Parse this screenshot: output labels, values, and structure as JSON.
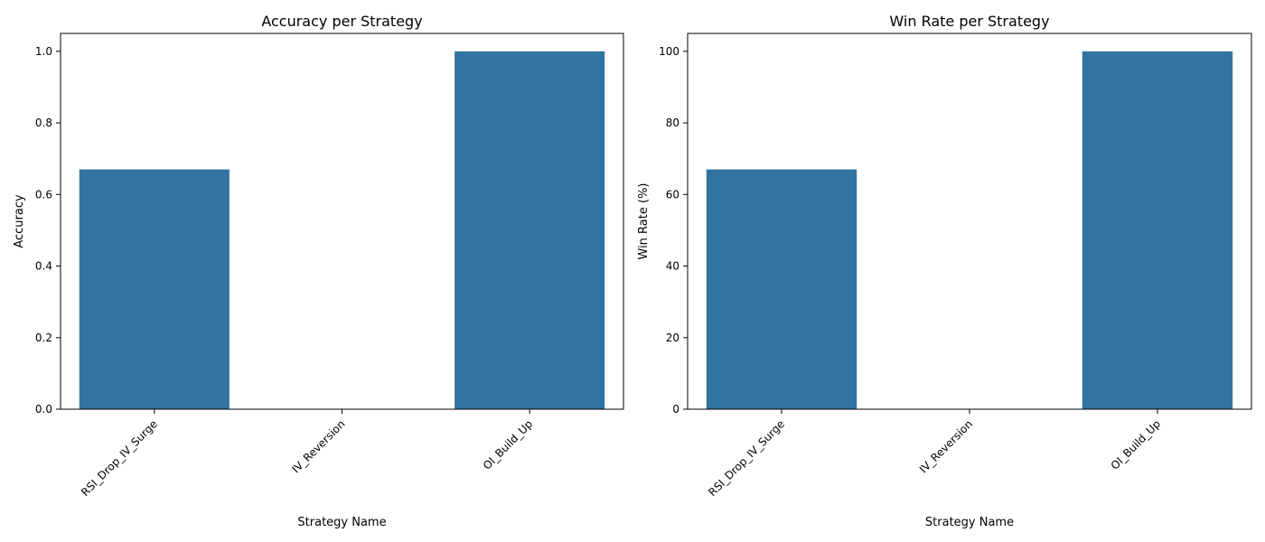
{
  "chart_data": [
    {
      "type": "bar",
      "title": "Accuracy per Strategy",
      "xlabel": "Strategy Name",
      "ylabel": "Accuracy",
      "categories": [
        "RSI_Drop_IV_Surge",
        "IV_Reversion",
        "OI_Build_Up"
      ],
      "values": [
        0.67,
        0.0,
        1.0
      ],
      "ylim": [
        0,
        1.05
      ],
      "yticks": [
        0.0,
        0.2,
        0.4,
        0.6,
        0.8,
        1.0
      ],
      "ytick_labels": [
        "0.0",
        "0.2",
        "0.4",
        "0.6",
        "0.8",
        "1.0"
      ],
      "grid": false,
      "bar_color": "#3274a1"
    },
    {
      "type": "bar",
      "title": "Win Rate per Strategy",
      "xlabel": "Strategy Name",
      "ylabel": "Win Rate (%)",
      "categories": [
        "RSI_Drop_IV_Surge",
        "IV_Reversion",
        "OI_Build_Up"
      ],
      "values": [
        67,
        0,
        100
      ],
      "ylim": [
        0,
        105
      ],
      "yticks": [
        0,
        20,
        40,
        60,
        80,
        100
      ],
      "ytick_labels": [
        "0",
        "20",
        "40",
        "60",
        "80",
        "100"
      ],
      "grid": false,
      "bar_color": "#3274a1"
    }
  ]
}
